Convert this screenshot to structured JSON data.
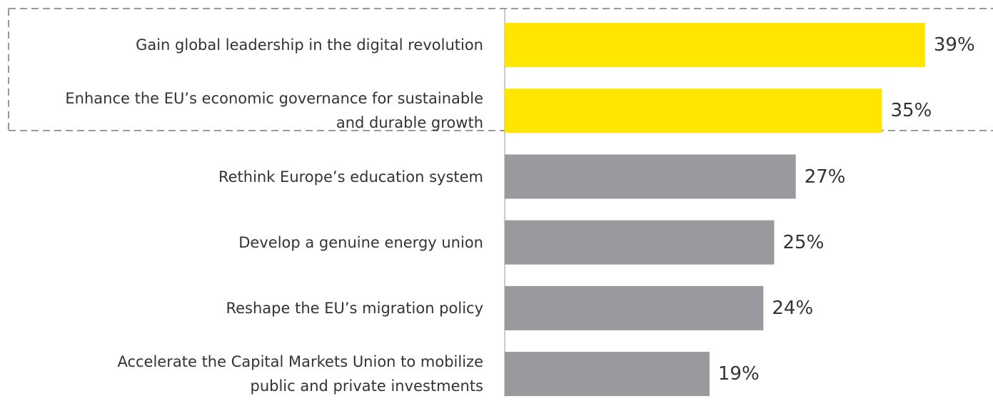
{
  "chart_data": {
    "type": "bar",
    "orientation": "horizontal",
    "categories": [
      "Gain global leadership in the digital revolution",
      "Enhance the EU’s economic governance for sustainable\nand durable growth",
      "Rethink Europe’s education system",
      "Develop a genuine energy union",
      "Reshape the EU’s migration policy",
      "Accelerate the Capital Markets Union to mobilize\npublic and private investments"
    ],
    "values": [
      39,
      35,
      27,
      25,
      24,
      19
    ],
    "value_labels": [
      "39%",
      "35%",
      "27%",
      "25%",
      "24%",
      "19%"
    ],
    "colors": [
      "#ffe600",
      "#ffe600",
      "#999a9e",
      "#999a9e",
      "#999a9e",
      "#999a9e"
    ]
  }
}
